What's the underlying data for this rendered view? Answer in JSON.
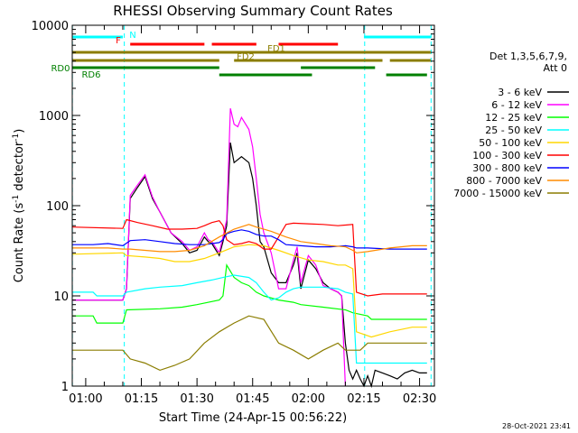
{
  "chart_data": {
    "type": "line",
    "title": "RHESSI Observing Summary Count Rates",
    "xlabel": "Start Time (24-Apr-15 00:56:22)",
    "ylabel_main": "Count Rate (s",
    "ylabel_sup1": "-1",
    "ylabel_mid": " detector",
    "ylabel_sup2": "-1",
    "ylabel_end": ")",
    "y_scale": "log",
    "xlim_min": [
      56.37,
      154.0
    ],
    "ylim": [
      1,
      10000
    ],
    "x_ticks_min": [
      60,
      75,
      90,
      105,
      120,
      135,
      150
    ],
    "x_tick_labels": [
      "01:00",
      "01:15",
      "01:30",
      "01:45",
      "02:00",
      "02:15",
      "02:30"
    ],
    "y_ticks": [
      1,
      10,
      100,
      1000,
      10000
    ],
    "y_tick_labels": [
      "1",
      "10",
      "100",
      "1000",
      "10000"
    ],
    "legend_header": [
      "Det 1,3,5,6,7,9,",
      "Att 0"
    ],
    "legend_placement": "right",
    "footer_date": "28-Oct-2021 23:41",
    "series": [
      {
        "name": "3 - 6 keV",
        "color": "#000000",
        "points": [
          [
            56.4,
            9
          ],
          [
            70,
            9
          ],
          [
            71,
            12
          ],
          [
            72,
            120
          ],
          [
            74,
            160
          ],
          [
            76,
            210
          ],
          [
            78,
            120
          ],
          [
            80,
            85
          ],
          [
            83,
            50
          ],
          [
            86,
            38
          ],
          [
            88,
            30
          ],
          [
            90,
            32
          ],
          [
            92,
            45
          ],
          [
            93,
            40
          ],
          [
            94,
            38
          ],
          [
            96,
            28
          ],
          [
            97,
            40
          ],
          [
            98,
            60
          ],
          [
            99,
            500
          ],
          [
            100,
            300
          ],
          [
            102,
            350
          ],
          [
            104,
            300
          ],
          [
            105,
            200
          ],
          [
            106,
            100
          ],
          [
            107,
            40
          ],
          [
            108,
            35
          ],
          [
            110,
            18
          ],
          [
            112,
            14
          ],
          [
            114,
            14
          ],
          [
            116,
            22
          ],
          [
            117,
            30
          ],
          [
            118,
            12
          ],
          [
            120,
            25
          ],
          [
            122,
            20
          ],
          [
            124,
            14
          ],
          [
            126,
            12
          ],
          [
            128,
            11
          ],
          [
            129,
            10
          ],
          [
            130,
            3
          ],
          [
            131,
            1.5
          ],
          [
            132,
            1.2
          ],
          [
            133,
            1.5
          ],
          [
            134,
            1.2
          ],
          [
            135,
            1
          ],
          [
            136,
            1.3
          ],
          [
            137,
            1
          ],
          [
            138,
            1.5
          ],
          [
            140,
            1.4
          ],
          [
            142,
            1.3
          ],
          [
            144,
            1.2
          ],
          [
            146,
            1.4
          ],
          [
            148,
            1.5
          ],
          [
            150,
            1.4
          ],
          [
            152,
            1.4
          ]
        ]
      },
      {
        "name": "6 - 12 keV",
        "color": "#ff00ff",
        "points": [
          [
            56.4,
            9
          ],
          [
            70,
            9
          ],
          [
            71,
            12
          ],
          [
            72,
            130
          ],
          [
            74,
            170
          ],
          [
            76,
            220
          ],
          [
            78,
            125
          ],
          [
            80,
            85
          ],
          [
            83,
            50
          ],
          [
            86,
            40
          ],
          [
            88,
            32
          ],
          [
            90,
            35
          ],
          [
            92,
            50
          ],
          [
            93,
            42
          ],
          [
            94,
            40
          ],
          [
            96,
            30
          ],
          [
            97,
            45
          ],
          [
            98,
            70
          ],
          [
            99,
            1200
          ],
          [
            100,
            800
          ],
          [
            101,
            750
          ],
          [
            102,
            950
          ],
          [
            104,
            700
          ],
          [
            105,
            450
          ],
          [
            106,
            200
          ],
          [
            107,
            80
          ],
          [
            108,
            50
          ],
          [
            110,
            30
          ],
          [
            112,
            12
          ],
          [
            114,
            12
          ],
          [
            116,
            25
          ],
          [
            117,
            35
          ],
          [
            118,
            14
          ],
          [
            120,
            28
          ],
          [
            122,
            22
          ],
          [
            124,
            13
          ],
          [
            126,
            12
          ],
          [
            128,
            11
          ],
          [
            129,
            10
          ],
          [
            130,
            1
          ]
        ]
      },
      {
        "name": "12 - 25 keV",
        "color": "#00ff00",
        "points": [
          [
            56.4,
            6
          ],
          [
            62,
            6
          ],
          [
            63,
            5
          ],
          [
            70,
            5
          ],
          [
            71,
            7
          ],
          [
            80,
            7.2
          ],
          [
            86,
            7.5
          ],
          [
            90,
            8
          ],
          [
            96,
            9
          ],
          [
            97,
            10
          ],
          [
            98,
            22
          ],
          [
            100,
            16
          ],
          [
            102,
            14
          ],
          [
            104,
            13
          ],
          [
            106,
            11
          ],
          [
            108,
            10
          ],
          [
            112,
            9
          ],
          [
            116,
            8.5
          ],
          [
            118,
            8
          ],
          [
            124,
            7.5
          ],
          [
            130,
            7
          ],
          [
            132,
            6.5
          ],
          [
            136,
            6
          ],
          [
            137,
            5.5
          ],
          [
            142,
            5.5
          ],
          [
            148,
            5.5
          ],
          [
            152,
            5.5
          ]
        ]
      },
      {
        "name": "25 - 50 keV",
        "color": "#00ffff",
        "points": [
          [
            56.4,
            11
          ],
          [
            62,
            11
          ],
          [
            63,
            10
          ],
          [
            70,
            10
          ],
          [
            71,
            11
          ],
          [
            76,
            12
          ],
          [
            80,
            12.5
          ],
          [
            86,
            13
          ],
          [
            90,
            14
          ],
          [
            94,
            15
          ],
          [
            97,
            16
          ],
          [
            100,
            17
          ],
          [
            104,
            16
          ],
          [
            106,
            14
          ],
          [
            108,
            11
          ],
          [
            110,
            9
          ],
          [
            112,
            9.5
          ],
          [
            114,
            11
          ],
          [
            116,
            12
          ],
          [
            118,
            12.5
          ],
          [
            124,
            12.5
          ],
          [
            128,
            12
          ],
          [
            130,
            11
          ],
          [
            132,
            10.5
          ],
          [
            133,
            1.8
          ],
          [
            137,
            1.8
          ],
          [
            142,
            1.8
          ],
          [
            148,
            1.8
          ],
          [
            152,
            1.8
          ]
        ]
      },
      {
        "name": "50 - 100 keV",
        "color": "#ffd700",
        "points": [
          [
            56.4,
            29
          ],
          [
            70,
            30
          ],
          [
            71,
            28
          ],
          [
            76,
            27
          ],
          [
            80,
            26
          ],
          [
            84,
            24
          ],
          [
            88,
            24
          ],
          [
            92,
            26
          ],
          [
            96,
            30
          ],
          [
            100,
            35
          ],
          [
            104,
            37
          ],
          [
            108,
            36
          ],
          [
            112,
            32
          ],
          [
            116,
            28
          ],
          [
            120,
            25
          ],
          [
            124,
            24
          ],
          [
            128,
            22
          ],
          [
            130,
            22
          ],
          [
            132,
            20
          ],
          [
            133,
            4
          ],
          [
            137,
            3.5
          ],
          [
            142,
            4
          ],
          [
            148,
            4.5
          ],
          [
            152,
            4.5
          ]
        ]
      },
      {
        "name": "100 - 300 keV",
        "color": "#ff0000",
        "points": [
          [
            56.4,
            58
          ],
          [
            70,
            56
          ],
          [
            71,
            70
          ],
          [
            74,
            65
          ],
          [
            78,
            60
          ],
          [
            82,
            55
          ],
          [
            86,
            55
          ],
          [
            90,
            56
          ],
          [
            92,
            60
          ],
          [
            94,
            65
          ],
          [
            96,
            68
          ],
          [
            97,
            60
          ],
          [
            98,
            42
          ],
          [
            100,
            37
          ],
          [
            102,
            38
          ],
          [
            104,
            40
          ],
          [
            106,
            38
          ],
          [
            108,
            33
          ],
          [
            110,
            33
          ],
          [
            112,
            45
          ],
          [
            114,
            62
          ],
          [
            116,
            64
          ],
          [
            120,
            63
          ],
          [
            124,
            62
          ],
          [
            128,
            60
          ],
          [
            132,
            62
          ],
          [
            133,
            11
          ],
          [
            136,
            10
          ],
          [
            140,
            10.5
          ],
          [
            146,
            10.5
          ],
          [
            152,
            10.5
          ]
        ]
      },
      {
        "name": "300 - 800 keV",
        "color": "#0000ff",
        "points": [
          [
            56.4,
            37
          ],
          [
            62,
            37
          ],
          [
            66,
            38
          ],
          [
            70,
            36
          ],
          [
            72,
            41
          ],
          [
            76,
            42
          ],
          [
            80,
            40
          ],
          [
            84,
            38
          ],
          [
            88,
            37
          ],
          [
            92,
            37
          ],
          [
            96,
            39
          ],
          [
            97,
            42
          ],
          [
            98,
            49
          ],
          [
            100,
            52
          ],
          [
            102,
            54
          ],
          [
            104,
            52
          ],
          [
            106,
            48
          ],
          [
            108,
            46
          ],
          [
            110,
            46
          ],
          [
            112,
            42
          ],
          [
            114,
            37
          ],
          [
            118,
            36
          ],
          [
            122,
            35
          ],
          [
            126,
            35
          ],
          [
            130,
            36
          ],
          [
            132,
            35
          ],
          [
            133,
            34
          ],
          [
            136,
            34
          ],
          [
            142,
            33
          ],
          [
            148,
            33
          ],
          [
            152,
            33
          ]
        ]
      },
      {
        "name": "800 - 7000 keV",
        "color": "#ff8c00",
        "points": [
          [
            56.4,
            34
          ],
          [
            66,
            34
          ],
          [
            70,
            33
          ],
          [
            72,
            33
          ],
          [
            76,
            32
          ],
          [
            80,
            31
          ],
          [
            84,
            31
          ],
          [
            88,
            32
          ],
          [
            92,
            36
          ],
          [
            96,
            45
          ],
          [
            100,
            55
          ],
          [
            104,
            62
          ],
          [
            106,
            58
          ],
          [
            110,
            52
          ],
          [
            114,
            45
          ],
          [
            118,
            40
          ],
          [
            122,
            38
          ],
          [
            126,
            36
          ],
          [
            130,
            35
          ],
          [
            132,
            32
          ],
          [
            133,
            30
          ],
          [
            136,
            31
          ],
          [
            142,
            34
          ],
          [
            148,
            36
          ],
          [
            152,
            36
          ]
        ]
      },
      {
        "name": "7000 - 15000 keV",
        "color": "#8b7d00",
        "points": [
          [
            56.4,
            2.5
          ],
          [
            70,
            2.5
          ],
          [
            72,
            2
          ],
          [
            76,
            1.8
          ],
          [
            80,
            1.5
          ],
          [
            84,
            1.7
          ],
          [
            88,
            2
          ],
          [
            92,
            3
          ],
          [
            96,
            4
          ],
          [
            100,
            5
          ],
          [
            104,
            6
          ],
          [
            108,
            5.5
          ],
          [
            112,
            3
          ],
          [
            116,
            2.5
          ],
          [
            120,
            2
          ],
          [
            124,
            2.5
          ],
          [
            128,
            3
          ],
          [
            130,
            2.5
          ],
          [
            132,
            2.5
          ],
          [
            134,
            2.5
          ],
          [
            136,
            3
          ],
          [
            140,
            3
          ],
          [
            146,
            3
          ],
          [
            152,
            3
          ]
        ]
      }
    ]
  },
  "flags": [
    {
      "label": "N",
      "color": "#00ffff",
      "segments": [
        [
          56.4,
          70
        ],
        [
          135,
          153
        ]
      ]
    },
    {
      "label": "F",
      "color": "#ff0000",
      "segments": [
        [
          72,
          92
        ],
        [
          94,
          106
        ],
        [
          112,
          128
        ]
      ]
    },
    {
      "label": "FD1",
      "color": "#8b7d00",
      "segments": [
        [
          56.4,
          153
        ]
      ]
    },
    {
      "label": "FD2",
      "color": "#8b7d00",
      "segments": [
        [
          56.4,
          96
        ],
        [
          100,
          140
        ],
        [
          142,
          153
        ]
      ]
    },
    {
      "label": "RD0",
      "color": "#008000",
      "segments": [
        [
          56.4,
          96
        ],
        [
          118,
          138
        ]
      ]
    },
    {
      "label": "RD6",
      "color": "#008000",
      "segments": [
        [
          96,
          121
        ],
        [
          141,
          152
        ]
      ]
    }
  ],
  "saa_lines": [
    56.4,
    70.4,
    135.2,
    153.1
  ]
}
